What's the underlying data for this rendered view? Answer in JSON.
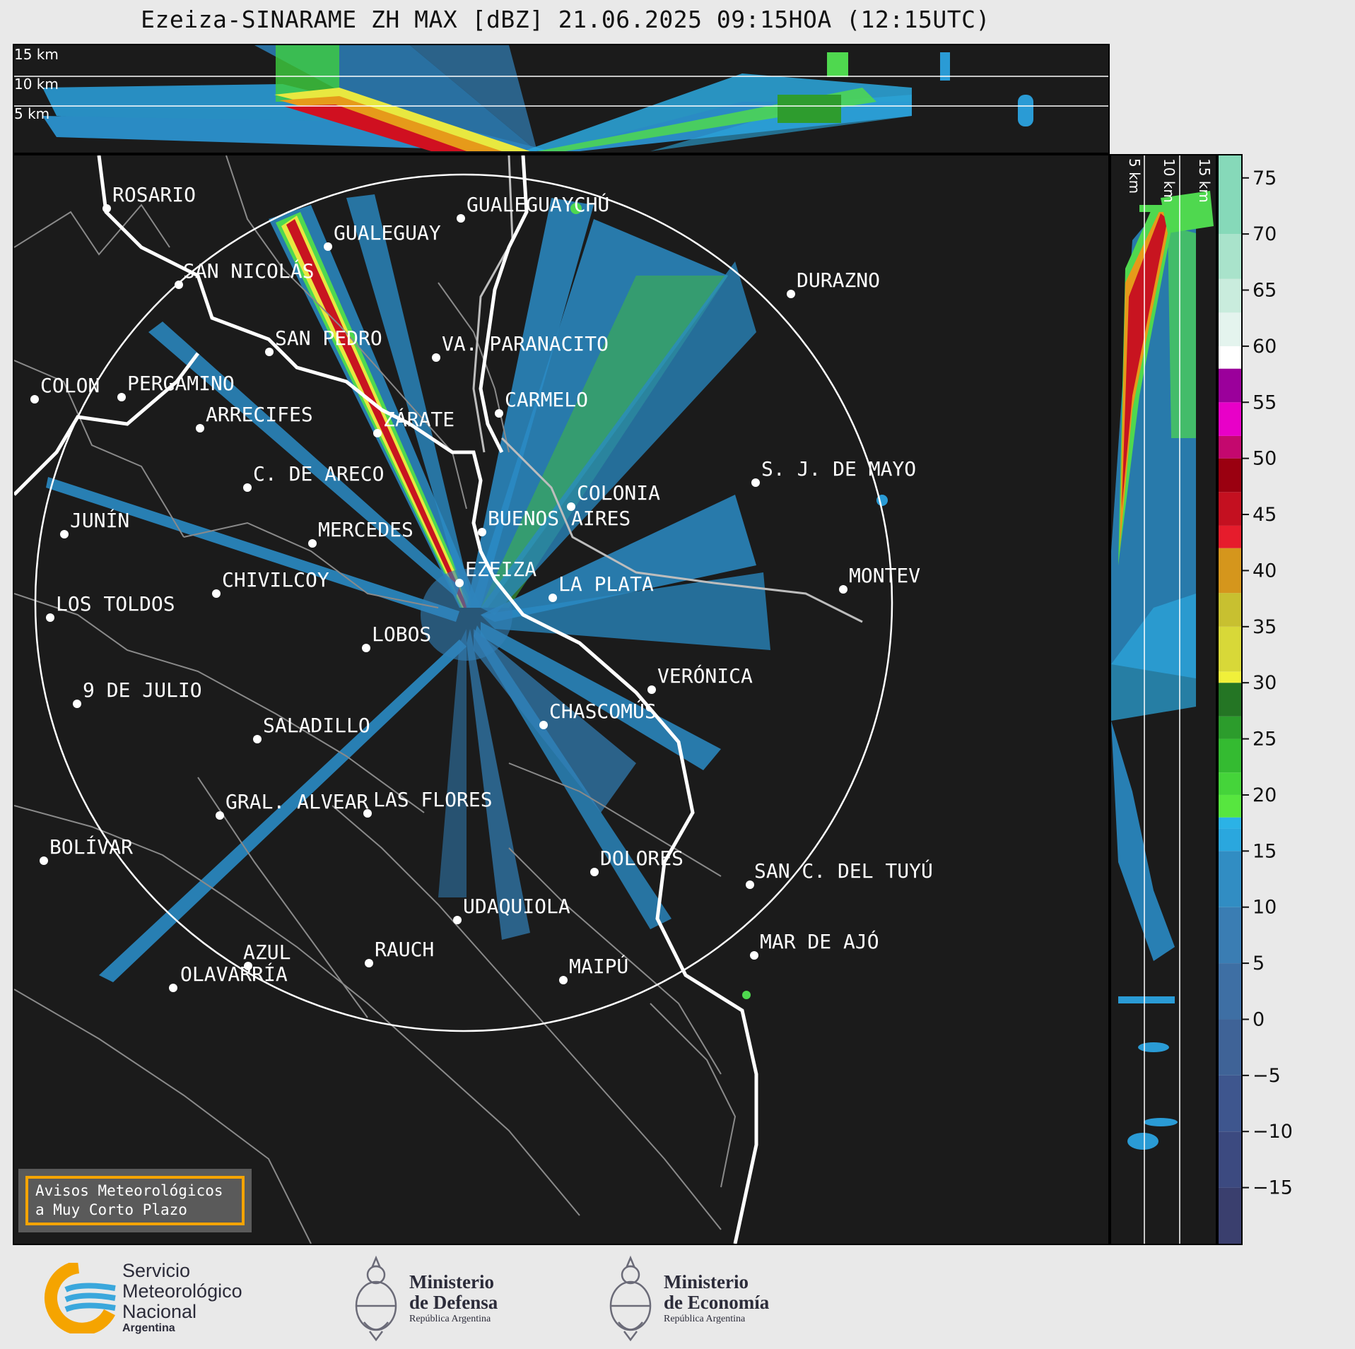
{
  "title": "Ezeiza-SINARAME ZH MAX [dBZ] 21.06.2025 09:15HOA (12:15UTC)",
  "top_panel": {
    "altitude_labels": [
      "15 km",
      "10 km",
      "5 km"
    ]
  },
  "side_panel": {
    "altitude_labels": [
      "5 km",
      "10 km",
      "15 km"
    ]
  },
  "colorbar": {
    "ticks": [
      "75",
      "70",
      "65",
      "60",
      "55",
      "50",
      "45",
      "40",
      "35",
      "30",
      "25",
      "20",
      "15",
      "10",
      "5",
      "0",
      "−5",
      "−10",
      "−15"
    ],
    "tick_values": [
      75,
      70,
      65,
      60,
      55,
      50,
      45,
      40,
      35,
      30,
      25,
      20,
      15,
      10,
      5,
      0,
      -5,
      -10,
      -15
    ],
    "range": [
      -20,
      77
    ]
  },
  "cities": [
    {
      "name": "ROSARIO"
    },
    {
      "name": "GUALEGUAYCHÚ"
    },
    {
      "name": "GUALEGUAY"
    },
    {
      "name": "SAN NICOLÁS"
    },
    {
      "name": "DURAZNO"
    },
    {
      "name": "SAN PEDRO"
    },
    {
      "name": "VA. PARANACITO"
    },
    {
      "name": "COLON"
    },
    {
      "name": "PERGAMINO"
    },
    {
      "name": "CARMELO"
    },
    {
      "name": "ARRECIFES"
    },
    {
      "name": "ZÁRATE"
    },
    {
      "name": "S. J. DE MAYO"
    },
    {
      "name": "C. DE ARECO"
    },
    {
      "name": "COLONIA"
    },
    {
      "name": "BUENOS AIRES"
    },
    {
      "name": "JUNÍN"
    },
    {
      "name": "MERCEDES"
    },
    {
      "name": "EZEIZA"
    },
    {
      "name": "MONTEV"
    },
    {
      "name": "CHIVILCOY"
    },
    {
      "name": "LA PLATA"
    },
    {
      "name": "LOS TOLDOS"
    },
    {
      "name": "LOBOS"
    },
    {
      "name": "VERÓNICA"
    },
    {
      "name": "9 DE JULIO"
    },
    {
      "name": "CHASCOMÚS"
    },
    {
      "name": "SALADILLO"
    },
    {
      "name": "GRAL. ALVEAR"
    },
    {
      "name": "LAS FLORES"
    },
    {
      "name": "BOLÍVAR"
    },
    {
      "name": "DOLORES"
    },
    {
      "name": "SAN C. DEL TUYÚ"
    },
    {
      "name": "UDAQUIOLA"
    },
    {
      "name": "MAR DE AJÓ"
    },
    {
      "name": "AZUL"
    },
    {
      "name": "RAUCH"
    },
    {
      "name": "OLAVARRÍA"
    },
    {
      "name": "MAIPÚ"
    }
  ],
  "notice": {
    "line1": "Avisos Meteorológicos",
    "line2": "a Muy Corto Plazo"
  },
  "footer": {
    "smn": {
      "line1": "Servicio",
      "line2": "Meteorológico",
      "line3": "Nacional",
      "line4": "Argentina"
    },
    "defensa": {
      "line1": "Ministerio",
      "line2": "de Defensa",
      "line3": "República Argentina"
    },
    "economia": {
      "line1": "Ministerio",
      "line2": "de Economía",
      "line3": "República Argentina"
    }
  }
}
